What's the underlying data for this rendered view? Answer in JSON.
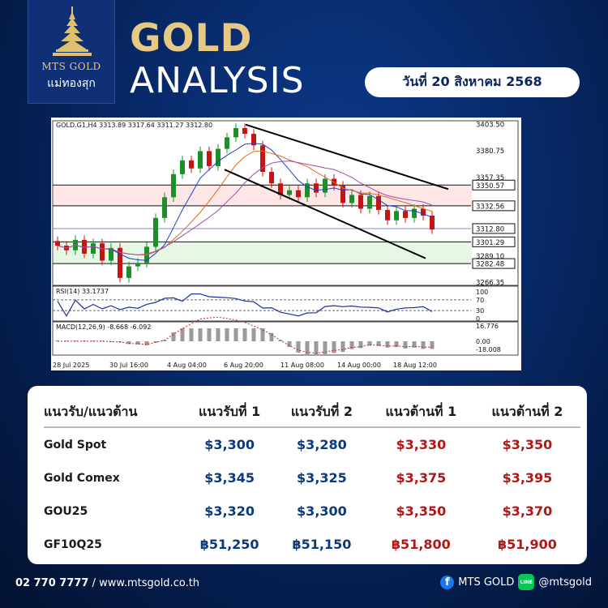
{
  "header": {
    "logo_brand": "MTS GOLD",
    "logo_brand_thai": "แม่ทองสุก",
    "title_line1": "GOLD",
    "title_line2": "ANALYSIS",
    "date": "วันที่ 20 สิงหาคม 2568"
  },
  "chart_data": {
    "type": "candlestick",
    "symbol_header": "GOLD.G1,H4  3313.89 3317.64 3311.27 3312.80",
    "price_ticks": [
      "3403.50",
      "3380.75",
      "3357.35",
      "3350.57",
      "3332.56",
      "3312.80",
      "3301.29",
      "3289.10",
      "3282.48",
      "3266.35"
    ],
    "price_ylim": [
      3266.35,
      3403.5
    ],
    "horizontal_levels": [
      3350.57,
      3332.56,
      3312.8,
      3301.29,
      3282.48
    ],
    "x_labels": [
      "28 Jul 2025",
      "30 Jul 16:00",
      "4 Aug 04:00",
      "6 Aug 20:00",
      "11 Aug 08:00",
      "14 Aug 00:00",
      "18 Aug 12:00"
    ],
    "close_path": [
      3298,
      3294,
      3303,
      3291,
      3300,
      3285,
      3296,
      3270,
      3280,
      3283,
      3297,
      3322,
      3340,
      3360,
      3372,
      3365,
      3380,
      3367,
      3382,
      3392,
      3400,
      3395,
      3385,
      3362,
      3352,
      3342,
      3346,
      3340,
      3352,
      3344,
      3356,
      3350,
      3335,
      3342,
      3330,
      3341,
      3329,
      3320,
      3328,
      3322,
      3330,
      3324,
      3312
    ],
    "rsi": {
      "label": "RSI(14) 33.1737",
      "levels": [
        "100",
        "70",
        "30",
        "0"
      ]
    },
    "macd": {
      "label": "MACD(12,26,9) -8.668 -6.092",
      "levels": [
        "16.776",
        "0.00",
        "-18.008"
      ]
    }
  },
  "table": {
    "headers": [
      "แนวรับ/แนวต้าน",
      "แนวรับที่ 1",
      "แนวรับที่ 2",
      "แนวต้านที่ 1",
      "แนวต้านที่ 2"
    ],
    "rows": [
      {
        "name": "Gold Spot",
        "s1": "$3,300",
        "s2": "$3,280",
        "r1": "$3,330",
        "r2": "$3,350"
      },
      {
        "name": "Gold Comex",
        "s1": "$3,345",
        "s2": "$3,325",
        "r1": "$3,375",
        "r2": "$3,395"
      },
      {
        "name": "GOU25",
        "s1": "$3,320",
        "s2": "$3,300",
        "r1": "$3,350",
        "r2": "$3,370"
      },
      {
        "name": "GF10Q25",
        "s1": "฿51,250",
        "s2": "฿51,150",
        "r1": "฿51,800",
        "r2": "฿51,900"
      }
    ]
  },
  "footer": {
    "phone": "02 770 7777",
    "website": "/ www.mtsgold.co.th",
    "facebook": "MTS GOLD",
    "line": "@mtsgold"
  }
}
